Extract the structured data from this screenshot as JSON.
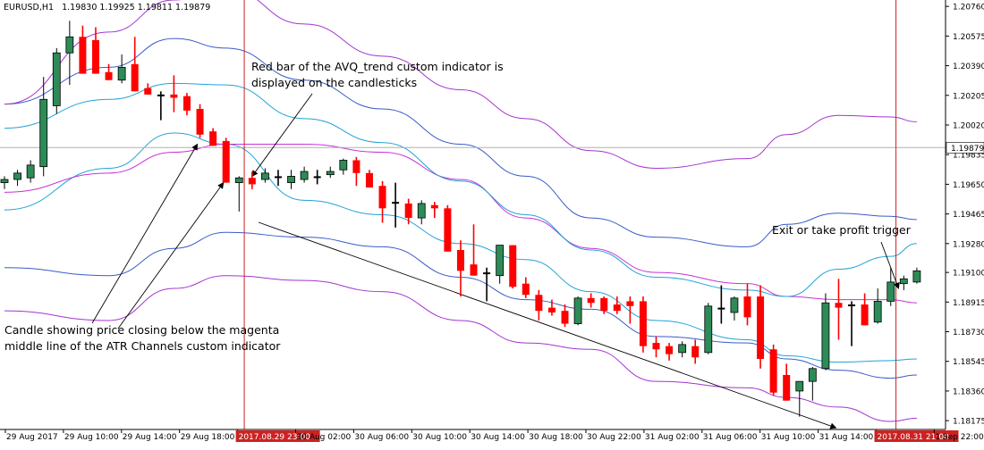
{
  "header": {
    "symbol": "EURUSD,H1",
    "ohlc": "1.19830 1.19925 1.19811 1.19879"
  },
  "annotations": [
    {
      "id": "avq",
      "lines": [
        "Red bar of the AVQ_trend custom indicator is",
        "displayed on the candlesticks"
      ]
    },
    {
      "id": "atr",
      "lines": [
        "Candle showing price closing below the magenta",
        "middle line of the ATR Channels custom indicator"
      ]
    },
    {
      "id": "exit",
      "lines": [
        "Exit or take profit trigger"
      ]
    }
  ],
  "colors": {
    "bull": "#2e8b57",
    "bear": "#ff0000",
    "doji": "#000000",
    "magenta_band": "#c833d6",
    "cyan_band": "#21a3d8",
    "blue_band": "#3a5bc7",
    "purple_band": "#a335cf",
    "marker": "#cc2222",
    "marker_label_bg": "#cc2222",
    "price_line": "#b0b0b0",
    "grid_axis": "#000000"
  },
  "chart_data": {
    "type": "candlestick",
    "symbol": "EURUSD,H1",
    "y_ticks": [
      "1.20760",
      "1.20575",
      "1.20390",
      "1.20205",
      "1.20020",
      "1.19835",
      "1.19650",
      "1.19465",
      "1.19280",
      "1.19100",
      "1.18915",
      "1.18730",
      "1.18545",
      "1.18360",
      "1.18175"
    ],
    "ylim": [
      1.1812,
      1.208
    ],
    "current_price": "1.19879",
    "x_ticks": [
      "29 Aug 2017",
      "29 Aug 10:00",
      "29 Aug 14:00",
      "29 Aug 18:00",
      "2017.08.29 23:00",
      "30 Aug 02:00",
      "30 Aug 06:00",
      "30 Aug 10:00",
      "30 Aug 14:00",
      "30 Aug 18:00",
      "30 Aug 22:00",
      "31 Aug 02:00",
      "31 Aug 06:00",
      "31 Aug 10:00",
      "31 Aug 14:00",
      "2017.08.31 21:00",
      "1 Sep 22:00"
    ],
    "highlighted_times": [
      "2017.08.29 23:00",
      "2017.08.31 21:00"
    ],
    "candles": [
      {
        "o": 1.1966,
        "h": 1.197,
        "l": 1.1962,
        "c": 1.1968
      },
      {
        "o": 1.1968,
        "h": 1.1974,
        "l": 1.1964,
        "c": 1.1972
      },
      {
        "o": 1.1969,
        "h": 1.198,
        "l": 1.1966,
        "c": 1.1977
      },
      {
        "o": 1.1976,
        "h": 1.2032,
        "l": 1.197,
        "c": 1.2018
      },
      {
        "o": 1.2014,
        "h": 1.205,
        "l": 1.2009,
        "c": 1.2047
      },
      {
        "o": 1.2047,
        "h": 1.2067,
        "l": 1.2027,
        "c": 1.2057
      },
      {
        "o": 1.2057,
        "h": 1.2064,
        "l": 1.2034,
        "c": 1.2034
      },
      {
        "o": 1.2055,
        "h": 1.2063,
        "l": 1.2034,
        "c": 1.2034
      },
      {
        "o": 1.2035,
        "h": 1.204,
        "l": 1.203,
        "c": 1.203
      },
      {
        "o": 1.203,
        "h": 1.2046,
        "l": 1.2028,
        "c": 1.2038
      },
      {
        "o": 1.204,
        "h": 1.2057,
        "l": 1.2023,
        "c": 1.2023
      },
      {
        "o": 1.2025,
        "h": 1.2028,
        "l": 1.2021,
        "c": 1.2021
      },
      {
        "o": 1.2021,
        "h": 1.2023,
        "l": 1.2005,
        "c": 1.2021
      },
      {
        "o": 1.2021,
        "h": 1.2033,
        "l": 1.201,
        "c": 1.2019
      },
      {
        "o": 1.202,
        "h": 1.2022,
        "l": 1.2008,
        "c": 1.2011
      },
      {
        "o": 1.2012,
        "h": 1.2015,
        "l": 1.1994,
        "c": 1.1996
      },
      {
        "o": 1.1998,
        "h": 1.2,
        "l": 1.1989,
        "c": 1.1989
      },
      {
        "o": 1.1992,
        "h": 1.1994,
        "l": 1.1966,
        "c": 1.1966
      },
      {
        "o": 1.1966,
        "h": 1.197,
        "l": 1.1948,
        "c": 1.1969
      },
      {
        "o": 1.1969,
        "h": 1.1973,
        "l": 1.1962,
        "c": 1.1965
      },
      {
        "o": 1.1968,
        "h": 1.1975,
        "l": 1.1966,
        "c": 1.1972
      },
      {
        "o": 1.197,
        "h": 1.1974,
        "l": 1.1964,
        "c": 1.1969
      },
      {
        "o": 1.1966,
        "h": 1.1974,
        "l": 1.1962,
        "c": 1.197
      },
      {
        "o": 1.1968,
        "h": 1.1976,
        "l": 1.1966,
        "c": 1.1973
      },
      {
        "o": 1.197,
        "h": 1.1974,
        "l": 1.1965,
        "c": 1.1969
      },
      {
        "o": 1.1971,
        "h": 1.1976,
        "l": 1.1969,
        "c": 1.1973
      },
      {
        "o": 1.1974,
        "h": 1.1981,
        "l": 1.1971,
        "c": 1.198
      },
      {
        "o": 1.198,
        "h": 1.1982,
        "l": 1.1964,
        "c": 1.1972
      },
      {
        "o": 1.1972,
        "h": 1.1974,
        "l": 1.1963,
        "c": 1.1963
      },
      {
        "o": 1.1964,
        "h": 1.1967,
        "l": 1.1941,
        "c": 1.195
      },
      {
        "o": 1.1954,
        "h": 1.1966,
        "l": 1.1938,
        "c": 1.1954
      },
      {
        "o": 1.1953,
        "h": 1.1956,
        "l": 1.194,
        "c": 1.1944
      },
      {
        "o": 1.1944,
        "h": 1.1955,
        "l": 1.194,
        "c": 1.1953
      },
      {
        "o": 1.1952,
        "h": 1.1954,
        "l": 1.1944,
        "c": 1.195
      },
      {
        "o": 1.195,
        "h": 1.1952,
        "l": 1.1923,
        "c": 1.1923
      },
      {
        "o": 1.1924,
        "h": 1.193,
        "l": 1.1895,
        "c": 1.1911
      },
      {
        "o": 1.1915,
        "h": 1.194,
        "l": 1.1908,
        "c": 1.1908
      },
      {
        "o": 1.191,
        "h": 1.1913,
        "l": 1.1892,
        "c": 1.191
      },
      {
        "o": 1.1908,
        "h": 1.1927,
        "l": 1.1903,
        "c": 1.1927
      },
      {
        "o": 1.1927,
        "h": 1.1927,
        "l": 1.19,
        "c": 1.1901
      },
      {
        "o": 1.1903,
        "h": 1.1907,
        "l": 1.1894,
        "c": 1.1896
      },
      {
        "o": 1.1896,
        "h": 1.1899,
        "l": 1.188,
        "c": 1.1886
      },
      {
        "o": 1.1888,
        "h": 1.1893,
        "l": 1.1883,
        "c": 1.1885
      },
      {
        "o": 1.1886,
        "h": 1.189,
        "l": 1.1876,
        "c": 1.1878
      },
      {
        "o": 1.1878,
        "h": 1.1895,
        "l": 1.1877,
        "c": 1.1894
      },
      {
        "o": 1.1894,
        "h": 1.1897,
        "l": 1.1888,
        "c": 1.1891
      },
      {
        "o": 1.1894,
        "h": 1.1895,
        "l": 1.1884,
        "c": 1.1886
      },
      {
        "o": 1.189,
        "h": 1.1895,
        "l": 1.1884,
        "c": 1.1886
      },
      {
        "o": 1.1892,
        "h": 1.1895,
        "l": 1.1878,
        "c": 1.1889
      },
      {
        "o": 1.1892,
        "h": 1.1895,
        "l": 1.186,
        "c": 1.1864
      },
      {
        "o": 1.1866,
        "h": 1.187,
        "l": 1.1857,
        "c": 1.1862
      },
      {
        "o": 1.1864,
        "h": 1.1866,
        "l": 1.1855,
        "c": 1.1859
      },
      {
        "o": 1.186,
        "h": 1.1867,
        "l": 1.1857,
        "c": 1.1865
      },
      {
        "o": 1.1864,
        "h": 1.1868,
        "l": 1.1853,
        "c": 1.1857
      },
      {
        "o": 1.186,
        "h": 1.1891,
        "l": 1.1859,
        "c": 1.1889
      },
      {
        "o": 1.1888,
        "h": 1.1902,
        "l": 1.1878,
        "c": 1.1887
      },
      {
        "o": 1.1885,
        "h": 1.1895,
        "l": 1.188,
        "c": 1.1894
      },
      {
        "o": 1.1895,
        "h": 1.1903,
        "l": 1.1877,
        "c": 1.1882
      },
      {
        "o": 1.1895,
        "h": 1.1902,
        "l": 1.185,
        "c": 1.1856
      },
      {
        "o": 1.1862,
        "h": 1.1865,
        "l": 1.1833,
        "c": 1.1835
      },
      {
        "o": 1.1846,
        "h": 1.1853,
        "l": 1.183,
        "c": 1.183
      },
      {
        "o": 1.1836,
        "h": 1.184,
        "l": 1.182,
        "c": 1.1842
      },
      {
        "o": 1.1842,
        "h": 1.1851,
        "l": 1.183,
        "c": 1.185
      },
      {
        "o": 1.185,
        "h": 1.1897,
        "l": 1.1849,
        "c": 1.1891
      },
      {
        "o": 1.1891,
        "h": 1.1906,
        "l": 1.1868,
        "c": 1.1888
      },
      {
        "o": 1.189,
        "h": 1.1892,
        "l": 1.1864,
        "c": 1.1889
      },
      {
        "o": 1.189,
        "h": 1.1897,
        "l": 1.1877,
        "c": 1.1877
      },
      {
        "o": 1.1879,
        "h": 1.19,
        "l": 1.1878,
        "c": 1.1892
      },
      {
        "o": 1.1892,
        "h": 1.1913,
        "l": 1.1889,
        "c": 1.1904
      },
      {
        "o": 1.1903,
        "h": 1.1908,
        "l": 1.1899,
        "c": 1.1906
      },
      {
        "o": 1.1904,
        "h": 1.1913,
        "l": 1.1903,
        "c": 1.1911
      }
    ],
    "bands": [
      {
        "name": "",
        "color_key": "purple_band",
        "values": [
          [
            0,
            1.1886
          ],
          [
            8,
            1.188
          ],
          [
            13,
            1.19
          ],
          [
            17,
            1.1908
          ],
          [
            23,
            1.1905
          ],
          [
            29,
            1.1898
          ],
          [
            35,
            1.188
          ],
          [
            40,
            1.1866
          ],
          [
            45,
            1.1862
          ],
          [
            50,
            1.1842
          ],
          [
            57,
            1.1838
          ],
          [
            60,
            1.1832
          ],
          [
            64,
            1.1826
          ],
          [
            68,
            1.1817
          ],
          [
            70,
            1.1819
          ]
        ]
      },
      {
        "name": "",
        "color_key": "blue_band",
        "values": [
          [
            0,
            1.1913
          ],
          [
            8,
            1.1908
          ],
          [
            13,
            1.1925
          ],
          [
            17,
            1.1935
          ],
          [
            23,
            1.1932
          ],
          [
            29,
            1.1926
          ],
          [
            35,
            1.1907
          ],
          [
            40,
            1.1893
          ],
          [
            45,
            1.1887
          ],
          [
            50,
            1.187
          ],
          [
            57,
            1.1866
          ],
          [
            60,
            1.1856
          ],
          [
            64,
            1.1849
          ],
          [
            68,
            1.1844
          ],
          [
            70,
            1.1846
          ]
        ]
      },
      {
        "name": "",
        "color_key": "cyan_band",
        "values": [
          [
            0,
            1.1949
          ],
          [
            8,
            1.1975
          ],
          [
            13,
            1.1997
          ],
          [
            17,
            1.199
          ],
          [
            23,
            1.1955
          ],
          [
            29,
            1.1946
          ],
          [
            35,
            1.1928
          ],
          [
            40,
            1.1918
          ],
          [
            45,
            1.1898
          ],
          [
            50,
            1.188
          ],
          [
            57,
            1.1868
          ],
          [
            60,
            1.1858
          ],
          [
            64,
            1.1854
          ],
          [
            68,
            1.1855
          ],
          [
            70,
            1.1856
          ]
        ]
      },
      {
        "name": "",
        "color_key": "magenta_band",
        "values": [
          [
            0,
            1.196
          ],
          [
            8,
            1.1972
          ],
          [
            13,
            1.1985
          ],
          [
            17,
            1.199
          ],
          [
            23,
            1.199
          ],
          [
            29,
            1.1985
          ],
          [
            35,
            1.1968
          ],
          [
            40,
            1.1944
          ],
          [
            45,
            1.1925
          ],
          [
            50,
            1.191
          ],
          [
            57,
            1.1903
          ],
          [
            60,
            1.1895
          ],
          [
            64,
            1.1893
          ],
          [
            68,
            1.1893
          ],
          [
            70,
            1.1891
          ]
        ]
      },
      {
        "name": "",
        "color_key": "cyan_band",
        "values": [
          [
            0,
            1.2
          ],
          [
            8,
            1.2018
          ],
          [
            13,
            1.2028
          ],
          [
            17,
            1.2027
          ],
          [
            23,
            1.2006
          ],
          [
            29,
            1.1991
          ],
          [
            35,
            1.1967
          ],
          [
            40,
            1.1946
          ],
          [
            45,
            1.1924
          ],
          [
            50,
            1.1907
          ],
          [
            57,
            1.1899
          ],
          [
            60,
            1.1895
          ],
          [
            64,
            1.1912
          ],
          [
            68,
            1.192
          ],
          [
            70,
            1.1928
          ]
        ]
      },
      {
        "name": "",
        "color_key": "blue_band",
        "values": [
          [
            0,
            1.2015
          ],
          [
            8,
            1.2038
          ],
          [
            13,
            1.2056
          ],
          [
            17,
            1.205
          ],
          [
            23,
            1.203
          ],
          [
            29,
            1.2012
          ],
          [
            35,
            1.199
          ],
          [
            40,
            1.197
          ],
          [
            45,
            1.1944
          ],
          [
            50,
            1.1932
          ],
          [
            57,
            1.1926
          ],
          [
            60,
            1.194
          ],
          [
            64,
            1.1947
          ],
          [
            68,
            1.1945
          ],
          [
            70,
            1.1943
          ]
        ]
      },
      {
        "name": "",
        "color_key": "purple_band",
        "values": [
          [
            0,
            1.2015
          ],
          [
            8,
            1.206
          ],
          [
            13,
            1.208
          ],
          [
            17,
            1.2087
          ],
          [
            23,
            1.2065
          ],
          [
            29,
            1.2045
          ],
          [
            35,
            1.2024
          ],
          [
            40,
            1.2006
          ],
          [
            45,
            1.1986
          ],
          [
            50,
            1.1975
          ],
          [
            57,
            1.1981
          ],
          [
            60,
            1.1996
          ],
          [
            64,
            1.2008
          ],
          [
            68,
            1.2007
          ],
          [
            70,
            1.2004
          ]
        ]
      }
    ]
  }
}
